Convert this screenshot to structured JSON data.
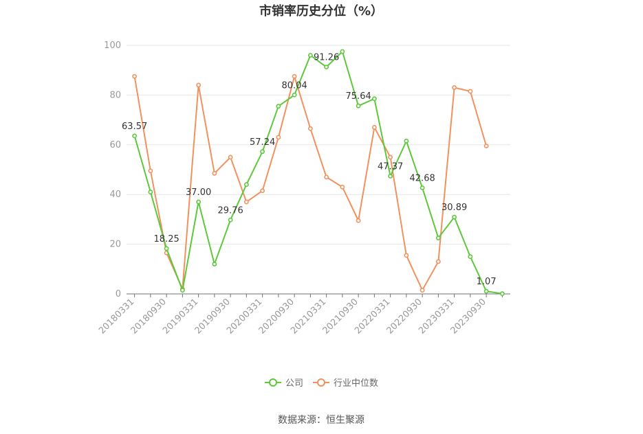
{
  "chart_data": {
    "type": "line",
    "title": "市销率历史分位（%）",
    "source": "数据来源：恒生聚源",
    "ylim": [
      0,
      100
    ],
    "yticks": [
      0,
      20,
      40,
      60,
      80,
      100
    ],
    "x": [
      "20180331",
      "20180630",
      "20180930",
      "20181231",
      "20190331",
      "20190630",
      "20190930",
      "20191231",
      "20200331",
      "20200630",
      "20200930",
      "20201231",
      "20210331",
      "20210630",
      "20210930",
      "20211231",
      "20220331",
      "20220630",
      "20220930",
      "20221231",
      "20230331",
      "20230630",
      "20230930",
      "20231231"
    ],
    "x_tick_labels": [
      "20180331",
      "20180930",
      "20190331",
      "20190930",
      "20200331",
      "20200930",
      "20210331",
      "20210930",
      "20220331",
      "20220930",
      "20230331",
      "20230930"
    ],
    "legend_position": "bottom",
    "series": [
      {
        "name": "公司",
        "color": "#5cc83a",
        "values": [
          63.57,
          41.0,
          18.25,
          1.5,
          37.0,
          12.0,
          29.76,
          44.0,
          57.24,
          75.5,
          80.04,
          96.0,
          91.26,
          97.5,
          75.64,
          78.5,
          47.37,
          61.5,
          42.68,
          22.5,
          30.89,
          15.0,
          1.07,
          0.1
        ],
        "labels": [
          "63.57",
          "",
          "18.25",
          "",
          "37.00",
          "",
          "29.76",
          "",
          "57.24",
          "",
          "80.04",
          "",
          "91.26",
          "",
          "75.64",
          "",
          "47.37",
          "",
          "42.68",
          "",
          "30.89",
          "",
          "1.07",
          ""
        ]
      },
      {
        "name": "行业中位数",
        "color": "#f0915e",
        "values": [
          87.5,
          49.5,
          16.5,
          2.0,
          84.0,
          48.5,
          55.0,
          37.0,
          41.5,
          63.0,
          87.5,
          66.5,
          47.0,
          43.0,
          29.5,
          67.0,
          55.0,
          15.5,
          1.5,
          13.0,
          83.0,
          81.5,
          59.5,
          null
        ],
        "labels": []
      }
    ]
  }
}
